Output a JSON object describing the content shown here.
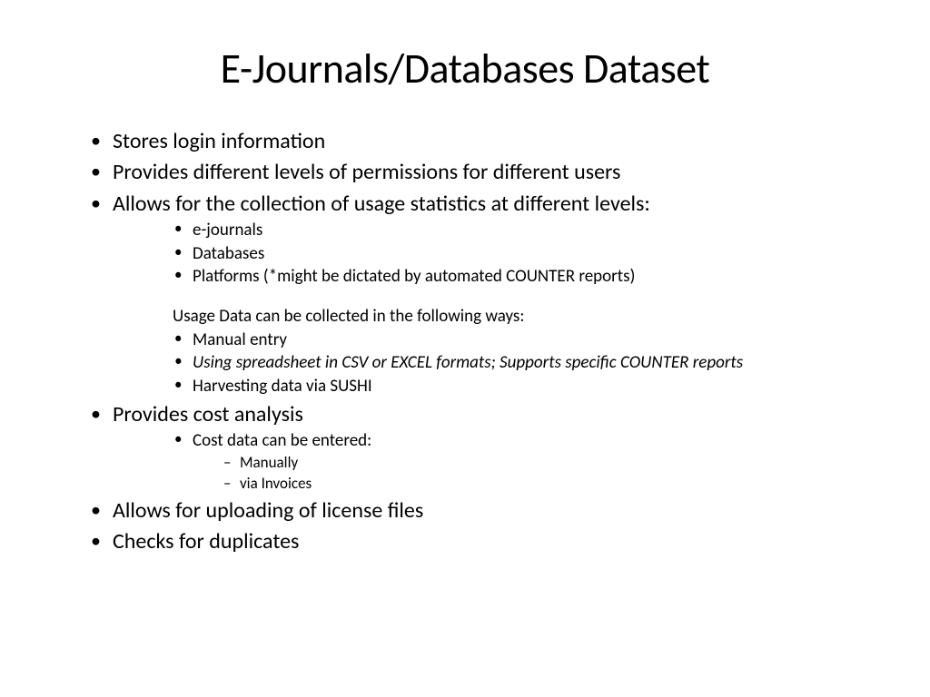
{
  "slide": {
    "title": "E-Journals/Databases Dataset",
    "background_color": "#ffffff",
    "text_color": "#000000",
    "title_fontsize": 46,
    "level1_fontsize": 24,
    "level2_fontsize": 19,
    "level3_fontsize": 17,
    "bullets": {
      "item1": "Stores login information",
      "item2": "Provides different levels of permissions for different users",
      "item3": "Allows for the collection of usage statistics at different levels:",
      "item3_sub1": "e-journals",
      "item3_sub2": "Databases",
      "item3_sub3": "Platforms (*might be dictated by automated COUNTER reports)",
      "item3_heading": "Usage Data can be collected in the following ways:",
      "item3_sub4": "Manual entry",
      "item3_sub5": "Using spreadsheet in CSV or EXCEL formats; Supports specific COUNTER reports",
      "item3_sub6": "Harvesting data via SUSHI",
      "item4": "Provides cost analysis",
      "item4_sub1": "Cost data can be entered:",
      "item4_sub1_a": "Manually",
      "item4_sub1_b": "via Invoices",
      "item5": "Allows for uploading of license files",
      "item6": "Checks for duplicates"
    }
  }
}
